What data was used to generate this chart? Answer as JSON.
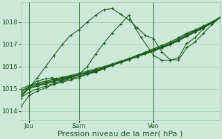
{
  "background_color": "#cce8d8",
  "grid_color": "#99ccaa",
  "line_color": "#1a5c1a",
  "marker": "+",
  "ylabel_ticks": [
    1014,
    1015,
    1016,
    1017,
    1018
  ],
  "xlim": [
    0,
    96
  ],
  "ylim": [
    1013.6,
    1018.9
  ],
  "xlabel": "Pression niveau de la mer( hPa )",
  "xlabel_fontsize": 8,
  "tick_fontsize": 6.5,
  "xtick_positions": [
    4,
    28,
    64
  ],
  "xtick_labels": [
    "Jeu",
    "Sam",
    "Ven"
  ],
  "vline_positions": [
    4,
    28,
    64
  ],
  "straight_x": [
    0,
    4,
    8,
    12,
    16,
    20,
    24,
    28,
    32,
    36,
    40,
    44,
    48,
    52,
    56,
    60,
    64,
    68,
    72,
    76,
    80,
    84,
    88,
    92,
    96
  ],
  "straight_series": [
    [
      1014.2,
      1014.7,
      1014.9,
      1015.05,
      1015.2,
      1015.3,
      1015.4,
      1015.5,
      1015.65,
      1015.75,
      1015.9,
      1016.05,
      1016.2,
      1016.35,
      1016.5,
      1016.65,
      1016.8,
      1016.95,
      1017.1,
      1017.3,
      1017.5,
      1017.65,
      1017.82,
      1018.0,
      1018.2
    ],
    [
      1014.6,
      1014.85,
      1015.0,
      1015.12,
      1015.25,
      1015.35,
      1015.45,
      1015.55,
      1015.68,
      1015.78,
      1015.9,
      1016.05,
      1016.18,
      1016.32,
      1016.45,
      1016.6,
      1016.75,
      1016.9,
      1017.05,
      1017.25,
      1017.45,
      1017.62,
      1017.8,
      1018.0,
      1018.2
    ],
    [
      1014.75,
      1015.0,
      1015.12,
      1015.22,
      1015.32,
      1015.42,
      1015.52,
      1015.62,
      1015.72,
      1015.82,
      1015.94,
      1016.06,
      1016.18,
      1016.3,
      1016.45,
      1016.58,
      1016.72,
      1016.86,
      1017.0,
      1017.18,
      1017.38,
      1017.56,
      1017.74,
      1017.96,
      1018.2
    ],
    [
      1014.9,
      1015.1,
      1015.2,
      1015.3,
      1015.38,
      1015.48,
      1015.56,
      1015.65,
      1015.75,
      1015.85,
      1015.96,
      1016.08,
      1016.2,
      1016.32,
      1016.46,
      1016.58,
      1016.72,
      1016.86,
      1017.0,
      1017.18,
      1017.38,
      1017.56,
      1017.74,
      1017.97,
      1018.2
    ],
    [
      1015.0,
      1015.15,
      1015.25,
      1015.35,
      1015.44,
      1015.52,
      1015.6,
      1015.7,
      1015.8,
      1015.9,
      1016.0,
      1016.12,
      1016.24,
      1016.36,
      1016.5,
      1016.62,
      1016.75,
      1016.88,
      1017.02,
      1017.2,
      1017.4,
      1017.58,
      1017.76,
      1017.98,
      1018.2
    ],
    [
      1014.85,
      1015.05,
      1015.16,
      1015.26,
      1015.36,
      1015.45,
      1015.54,
      1015.62,
      1015.72,
      1015.82,
      1015.93,
      1016.06,
      1016.18,
      1016.3,
      1016.44,
      1016.57,
      1016.7,
      1016.84,
      1016.98,
      1017.16,
      1017.36,
      1017.54,
      1017.73,
      1017.96,
      1018.2
    ]
  ],
  "wiggly1_x": [
    0,
    4,
    8,
    12,
    15,
    17,
    19,
    22,
    25,
    28,
    32,
    36,
    40,
    44,
    48,
    52,
    55,
    58,
    64,
    68,
    72,
    76,
    80,
    84,
    88,
    92,
    96
  ],
  "wiggly1_y": [
    1014.65,
    1015.1,
    1015.35,
    1015.45,
    1015.5,
    1015.45,
    1015.35,
    1015.45,
    1015.55,
    1015.65,
    1016.0,
    1016.55,
    1017.05,
    1017.5,
    1017.9,
    1018.3,
    1017.75,
    1017.3,
    1016.5,
    1016.28,
    1016.27,
    1016.4,
    1017.05,
    1017.3,
    1017.7,
    1018.0,
    1018.2
  ],
  "wiggly2_x": [
    0,
    4,
    8,
    12,
    16,
    20,
    24,
    28,
    32,
    36,
    40,
    44,
    48,
    52,
    56,
    60,
    64,
    68,
    72,
    76,
    80,
    84,
    88,
    92,
    96
  ],
  "wiggly2_y": [
    1014.6,
    1015.05,
    1015.5,
    1016.0,
    1016.5,
    1017.0,
    1017.4,
    1017.65,
    1018.0,
    1018.3,
    1018.55,
    1018.6,
    1018.35,
    1018.1,
    1017.75,
    1017.4,
    1017.25,
    1016.65,
    1016.3,
    1016.3,
    1016.85,
    1017.1,
    1017.5,
    1017.88,
    1018.2
  ]
}
